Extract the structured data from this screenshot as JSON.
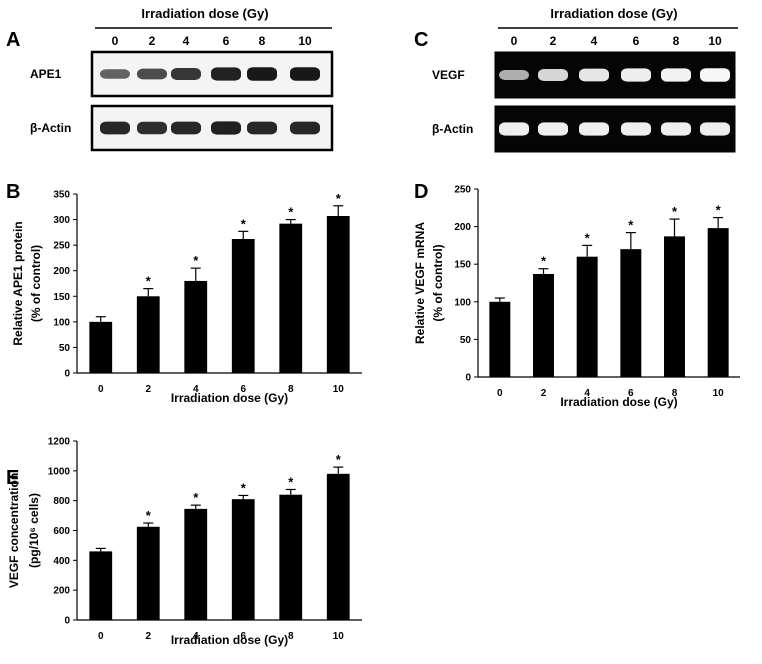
{
  "blots": {
    "left": {
      "letter": "A",
      "title": "Irradiation dose (Gy)",
      "lanes": [
        "0",
        "2",
        "4",
        "6",
        "8",
        "10"
      ],
      "rows": [
        {
          "label": "APE1",
          "intensities": [
            0.45,
            0.6,
            0.75,
            0.9,
            0.95,
            0.95
          ]
        },
        {
          "label": "β-Actin",
          "intensities": [
            0.85,
            0.8,
            0.85,
            0.9,
            0.85,
            0.85
          ]
        }
      ]
    },
    "right": {
      "letter": "C",
      "title": "Irradiation dose (Gy)",
      "lanes": [
        "0",
        "2",
        "4",
        "6",
        "8",
        "10"
      ],
      "rows": [
        {
          "label": "VEGF",
          "intensities": [
            0.5,
            0.75,
            0.85,
            0.9,
            0.92,
            0.95
          ]
        },
        {
          "label": "β-Actin",
          "intensities": [
            0.9,
            0.9,
            0.9,
            0.9,
            0.9,
            0.9
          ]
        }
      ]
    }
  },
  "chart_data": [
    {
      "id": "B",
      "type": "bar",
      "letter": "B",
      "categories": [
        "0",
        "2",
        "4",
        "6",
        "8",
        "10"
      ],
      "values": [
        100,
        150,
        180,
        262,
        292,
        307
      ],
      "errors": [
        10,
        15,
        25,
        15,
        8,
        20
      ],
      "significant": [
        false,
        true,
        true,
        true,
        true,
        true
      ],
      "marker": "*",
      "xlabel": "Irradiation dose (Gy)",
      "ylabel": "Relative APE1 protein",
      "ylabel2": "(% of control)",
      "ylim": [
        0,
        350
      ],
      "yticks": [
        0,
        50,
        100,
        150,
        200,
        250,
        300,
        350
      ]
    },
    {
      "id": "D",
      "type": "bar",
      "letter": "D",
      "categories": [
        "0",
        "2",
        "4",
        "6",
        "8",
        "10"
      ],
      "values": [
        100,
        137,
        160,
        170,
        187,
        198
      ],
      "errors": [
        5,
        7,
        15,
        22,
        23,
        14
      ],
      "significant": [
        false,
        true,
        true,
        true,
        true,
        true
      ],
      "marker": "*",
      "xlabel": "Irradiation dose (Gy)",
      "ylabel": "Relative VEGF mRNA",
      "ylabel2": "(% of control)",
      "ylim": [
        0,
        250
      ],
      "yticks": [
        0,
        50,
        100,
        150,
        200,
        250
      ]
    },
    {
      "id": "E",
      "type": "bar",
      "letter": "E",
      "categories": [
        "0",
        "2",
        "4",
        "6",
        "8",
        "10"
      ],
      "values": [
        460,
        625,
        745,
        810,
        840,
        980
      ],
      "errors": [
        20,
        25,
        25,
        25,
        35,
        45
      ],
      "significant": [
        false,
        true,
        true,
        true,
        true,
        true
      ],
      "marker": "*",
      "xlabel": "Irradiation dose (Gy)",
      "ylabel": "VEGF concentration",
      "ylabel2": "(pg/10⁶ cells)",
      "ylim": [
        0,
        1200
      ],
      "yticks": [
        0,
        200,
        400,
        600,
        800,
        1000,
        1200
      ]
    }
  ]
}
